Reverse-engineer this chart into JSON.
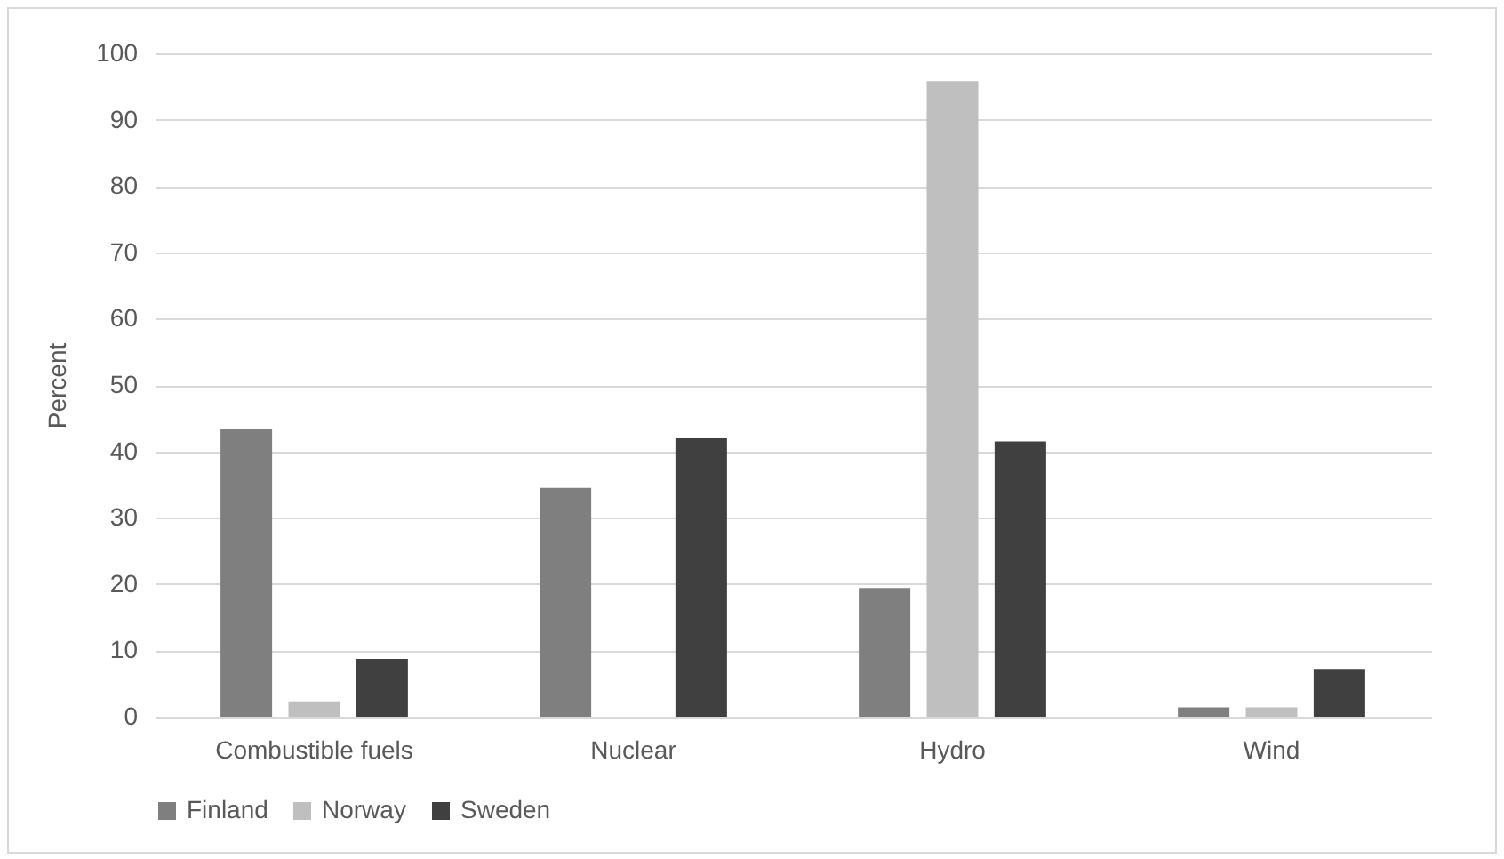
{
  "chart_data": {
    "type": "bar",
    "ylabel": "Percent",
    "categories": [
      "Combustible fuels",
      "Nuclear",
      "Hydro",
      "Wind"
    ],
    "series": [
      {
        "name": "Finland",
        "color": "#7f7f7f",
        "values": [
          43.4,
          34.5,
          19.4,
          1.4
        ]
      },
      {
        "name": "Norway",
        "color": "#bfbfbf",
        "values": [
          2.3,
          0,
          95.8,
          1.4
        ]
      },
      {
        "name": "Sweden",
        "color": "#404040",
        "values": [
          8.7,
          42.1,
          41.5,
          7.2
        ]
      }
    ],
    "ylim": [
      0,
      100
    ],
    "yticks": [
      0,
      10,
      20,
      30,
      40,
      50,
      60,
      70,
      80,
      90,
      100
    ],
    "grid": "y",
    "legend": "bottom"
  }
}
